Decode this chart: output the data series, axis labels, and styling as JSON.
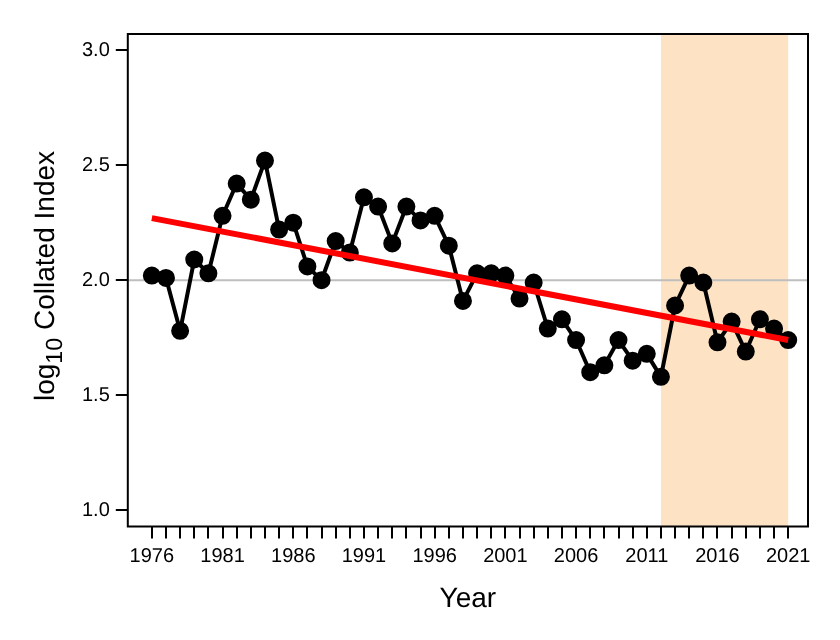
{
  "chart_data": {
    "type": "line",
    "xlabel": "Year",
    "ylabel": "log$_{10}$ Collated Index",
    "xlim": [
      1974.3,
      2022.4
    ],
    "ylim": [
      0.93,
      3.07
    ],
    "xticks": [
      1976,
      {
        "value": 1977,
        "label": null
      },
      {
        "value": 1978,
        "label": null
      },
      {
        "value": 1979,
        "label": null
      },
      {
        "value": 1980,
        "label": null
      },
      1981,
      {
        "value": 1982,
        "label": null
      },
      {
        "value": 1983,
        "label": null
      },
      {
        "value": 1984,
        "label": null
      },
      {
        "value": 1985,
        "label": null
      },
      1986,
      {
        "value": 1987,
        "label": null
      },
      {
        "value": 1988,
        "label": null
      },
      {
        "value": 1989,
        "label": null
      },
      {
        "value": 1990,
        "label": null
      },
      1991,
      {
        "value": 1992,
        "label": null
      },
      {
        "value": 1993,
        "label": null
      },
      {
        "value": 1994,
        "label": null
      },
      {
        "value": 1995,
        "label": null
      },
      1996,
      {
        "value": 1997,
        "label": null
      },
      {
        "value": 1998,
        "label": null
      },
      {
        "value": 1999,
        "label": null
      },
      {
        "value": 2000,
        "label": null
      },
      2001,
      {
        "value": 2002,
        "label": null
      },
      {
        "value": 2003,
        "label": null
      },
      {
        "value": 2004,
        "label": null
      },
      {
        "value": 2005,
        "label": null
      },
      2006,
      {
        "value": 2007,
        "label": null
      },
      {
        "value": 2008,
        "label": null
      },
      {
        "value": 2009,
        "label": null
      },
      {
        "value": 2010,
        "label": null
      },
      2011,
      {
        "value": 2012,
        "label": null
      },
      {
        "value": 2013,
        "label": null
      },
      {
        "value": 2014,
        "label": null
      },
      {
        "value": 2015,
        "label": null
      },
      2016,
      {
        "value": 2017,
        "label": null
      },
      {
        "value": 2018,
        "label": null
      },
      {
        "value": 2019,
        "label": null
      },
      {
        "value": 2020,
        "label": null
      },
      2021
    ],
    "yticks": [
      {
        "value": 1,
        "label": "1.0"
      },
      1.5,
      {
        "value": 2,
        "label": "2.0"
      },
      2.5,
      {
        "value": 3,
        "label": "3.0"
      }
    ],
    "grid": false,
    "legend": false,
    "x": [
      1976,
      1977,
      1978,
      1979,
      1980,
      1981,
      1982,
      1983,
      1984,
      1985,
      1986,
      1987,
      1988,
      1989,
      1990,
      1991,
      1992,
      1993,
      1994,
      1995,
      1996,
      1997,
      1998,
      1999,
      2000,
      2001,
      2002,
      2003,
      2004,
      2005,
      2006,
      2007,
      2008,
      2009,
      2010,
      2011,
      2012,
      2013,
      2014,
      2015,
      2016,
      2017,
      2018,
      2019,
      2020,
      2021
    ],
    "series": [
      {
        "color": "#000000",
        "marker": "circle",
        "values": [
          2.02,
          2.01,
          1.78,
          2.09,
          2.03,
          2.28,
          2.42,
          2.35,
          2.52,
          2.22,
          2.25,
          2.06,
          2.0,
          2.17,
          2.12,
          2.36,
          2.32,
          2.16,
          2.32,
          2.26,
          2.28,
          2.15,
          1.91,
          2.03,
          2.03,
          2.02,
          1.92,
          1.99,
          1.79,
          1.83,
          1.74,
          1.6,
          1.63,
          1.74,
          1.65,
          1.68,
          1.58,
          1.89,
          2.02,
          1.99,
          1.73,
          1.82,
          1.69,
          1.83,
          1.79,
          1.74
        ]
      },
      {
        "color": "#ff0000",
        "marker": "none",
        "x": [
          1976,
          2021
        ],
        "values": [
          2.27,
          1.74
        ]
      }
    ],
    "ref_lines": [
      {
        "axis": "y",
        "value": 2,
        "color": "#bebebe"
      }
    ],
    "bands": [
      {
        "axis": "x",
        "from": 2012,
        "to": 2021,
        "color": "#fde3c4"
      }
    ]
  }
}
